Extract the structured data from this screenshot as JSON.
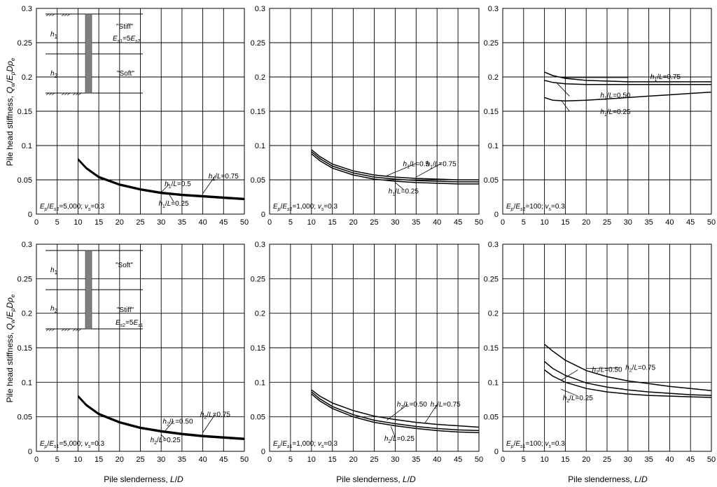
{
  "figure": {
    "xlabel": "Pile slenderness, L/D",
    "ylabel": "Pile head stiffness, Qw/EpDρe",
    "inset_top": {
      "h1": "h1",
      "h2": "h2",
      "upper_text": "\"Stiff\"",
      "upper_eq": "Es1=5Es2",
      "lower_text": "\"Soft\""
    },
    "inset_bottom": {
      "h1": "h1",
      "h2": "h2",
      "upper_text": "\"Soft\"",
      "lower_text": "\"Stiff\"",
      "lower_eq": "Es2=5Es1"
    }
  },
  "chart_data": [
    {
      "type": "line",
      "param": "Ep/Es2=5,000; νs=0.3",
      "xlim": [
        0,
        50
      ],
      "ylim": [
        0,
        0.3
      ],
      "xticks": [
        0,
        5,
        10,
        15,
        20,
        25,
        30,
        35,
        40,
        45,
        50
      ],
      "yticks": [
        0,
        0.05,
        0.1,
        0.15,
        0.2,
        0.25,
        0.3
      ],
      "x": [
        10,
        12,
        15,
        20,
        25,
        30,
        35,
        40,
        45,
        50
      ],
      "series": [
        {
          "name": "h1/L=0.25",
          "values": [
            0.079,
            0.066,
            0.053,
            0.042,
            0.035,
            0.03,
            0.027,
            0.025,
            0.023,
            0.021
          ]
        },
        {
          "name": "h1/L=0.5",
          "values": [
            0.08,
            0.067,
            0.054,
            0.043,
            0.036,
            0.031,
            0.028,
            0.026,
            0.024,
            0.022
          ]
        },
        {
          "name": "h1/L=0.75",
          "values": [
            0.081,
            0.068,
            0.055,
            0.044,
            0.037,
            0.032,
            0.029,
            0.027,
            0.025,
            0.023
          ]
        }
      ]
    },
    {
      "type": "line",
      "param": "Ep/Es2=1,000; νs=0.3",
      "xlim": [
        0,
        50
      ],
      "ylim": [
        0,
        0.3
      ],
      "xticks": [
        0,
        5,
        10,
        15,
        20,
        25,
        30,
        35,
        40,
        45,
        50
      ],
      "yticks": [
        0,
        0.05,
        0.1,
        0.15,
        0.2,
        0.25,
        0.3
      ],
      "x": [
        10,
        12,
        15,
        20,
        25,
        30,
        35,
        40,
        45,
        50
      ],
      "series": [
        {
          "name": "h1/L=0.25",
          "values": [
            0.088,
            0.078,
            0.067,
            0.057,
            0.051,
            0.048,
            0.046,
            0.045,
            0.044,
            0.044
          ]
        },
        {
          "name": "h1/L=0.5",
          "values": [
            0.091,
            0.081,
            0.07,
            0.06,
            0.054,
            0.051,
            0.049,
            0.048,
            0.047,
            0.047
          ]
        },
        {
          "name": "h1/L=0.75",
          "values": [
            0.094,
            0.084,
            0.073,
            0.063,
            0.057,
            0.054,
            0.052,
            0.051,
            0.05,
            0.05
          ]
        }
      ]
    },
    {
      "type": "line",
      "param": "Ep/Es2=100; νs=0.3",
      "xlim": [
        0,
        50
      ],
      "ylim": [
        0,
        0.3
      ],
      "xticks": [
        0,
        5,
        10,
        15,
        20,
        25,
        30,
        35,
        40,
        45,
        50
      ],
      "yticks": [
        0,
        0.05,
        0.1,
        0.15,
        0.2,
        0.25,
        0.3
      ],
      "x": [
        10,
        12,
        15,
        20,
        25,
        30,
        35,
        40,
        45,
        50
      ],
      "series": [
        {
          "name": "h1/L=0.25",
          "values": [
            0.17,
            0.166,
            0.165,
            0.166,
            0.168,
            0.17,
            0.172,
            0.174,
            0.176,
            0.178
          ]
        },
        {
          "name": "h1/L=0.50",
          "values": [
            0.195,
            0.192,
            0.19,
            0.189,
            0.189,
            0.189,
            0.189,
            0.189,
            0.189,
            0.189
          ]
        },
        {
          "name": "h1/L=0.75",
          "values": [
            0.207,
            0.202,
            0.198,
            0.195,
            0.194,
            0.193,
            0.193,
            0.193,
            0.193,
            0.193
          ]
        }
      ]
    },
    {
      "type": "line",
      "param": "Ep/Es1=5,000; νs=0.3",
      "xlim": [
        0,
        50
      ],
      "ylim": [
        0,
        0.3
      ],
      "xticks": [
        0,
        5,
        10,
        15,
        20,
        25,
        30,
        35,
        40,
        45,
        50
      ],
      "yticks": [
        0,
        0.05,
        0.1,
        0.15,
        0.2,
        0.25,
        0.3
      ],
      "x": [
        10,
        12,
        15,
        20,
        25,
        30,
        35,
        40,
        45,
        50
      ],
      "series": [
        {
          "name": "h2/L=0.25",
          "values": [
            0.079,
            0.066,
            0.053,
            0.041,
            0.033,
            0.028,
            0.024,
            0.021,
            0.019,
            0.017
          ]
        },
        {
          "name": "h2/L=0.50",
          "values": [
            0.08,
            0.067,
            0.054,
            0.042,
            0.034,
            0.029,
            0.025,
            0.022,
            0.02,
            0.018
          ]
        },
        {
          "name": "h2/L=0.75",
          "values": [
            0.081,
            0.068,
            0.055,
            0.043,
            0.035,
            0.03,
            0.026,
            0.023,
            0.021,
            0.019
          ]
        }
      ]
    },
    {
      "type": "line",
      "param": "Ep/Es1=1,000; νs=0.3",
      "xlim": [
        0,
        50
      ],
      "ylim": [
        0,
        0.3
      ],
      "xticks": [
        0,
        5,
        10,
        15,
        20,
        25,
        30,
        35,
        40,
        45,
        50
      ],
      "yticks": [
        0,
        0.05,
        0.1,
        0.15,
        0.2,
        0.25,
        0.3
      ],
      "x": [
        10,
        12,
        15,
        20,
        25,
        30,
        35,
        40,
        45,
        50
      ],
      "series": [
        {
          "name": "h2/L=0.25",
          "values": [
            0.083,
            0.073,
            0.062,
            0.05,
            0.042,
            0.037,
            0.033,
            0.03,
            0.028,
            0.027
          ]
        },
        {
          "name": "h2/L=0.50",
          "values": [
            0.086,
            0.076,
            0.065,
            0.053,
            0.045,
            0.04,
            0.036,
            0.033,
            0.031,
            0.03
          ]
        },
        {
          "name": "h2/L=0.75",
          "values": [
            0.089,
            0.08,
            0.07,
            0.059,
            0.051,
            0.046,
            0.042,
            0.039,
            0.037,
            0.035
          ]
        }
      ]
    },
    {
      "type": "line",
      "param": "Ep/Es1=100; νs=0.3",
      "xlim": [
        0,
        50
      ],
      "ylim": [
        0,
        0.3
      ],
      "xticks": [
        0,
        5,
        10,
        15,
        20,
        25,
        30,
        35,
        40,
        45,
        50
      ],
      "yticks": [
        0,
        0.05,
        0.1,
        0.15,
        0.2,
        0.25,
        0.3
      ],
      "x": [
        10,
        12,
        15,
        20,
        25,
        30,
        35,
        40,
        45,
        50
      ],
      "series": [
        {
          "name": "h2/L=0.25",
          "values": [
            0.118,
            0.109,
            0.1,
            0.091,
            0.086,
            0.083,
            0.081,
            0.08,
            0.079,
            0.078
          ]
        },
        {
          "name": "h2/L=0.50",
          "values": [
            0.13,
            0.12,
            0.11,
            0.099,
            0.093,
            0.089,
            0.086,
            0.084,
            0.082,
            0.081
          ]
        },
        {
          "name": "h2/L=0.75",
          "values": [
            0.155,
            0.145,
            0.132,
            0.117,
            0.108,
            0.102,
            0.098,
            0.094,
            0.091,
            0.088
          ]
        }
      ]
    }
  ]
}
